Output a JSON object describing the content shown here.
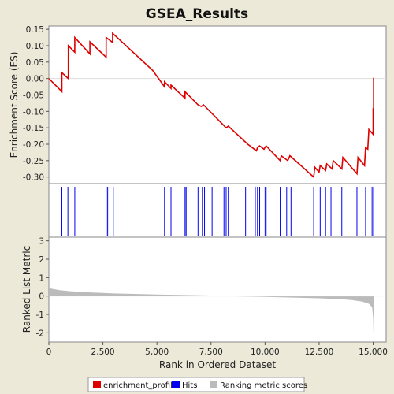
{
  "chart_data": {
    "type": "line",
    "title": "GSEA_Results",
    "xlabel": "Rank in Ordered Dataset",
    "x_ticks": [
      0,
      2500,
      5000,
      7500,
      10000,
      12500,
      15000
    ],
    "x_tick_labels": [
      "0",
      "2,500",
      "5,000",
      "7,500",
      "10,000",
      "12,500",
      "15,000"
    ],
    "xlim": [
      0,
      15600
    ],
    "enrichment_panel": {
      "ylabel": "Enrichment Score (ES)",
      "ylim": [
        -0.32,
        0.16
      ],
      "y_ticks": [
        0.15,
        0.1,
        0.05,
        0.0,
        -0.05,
        -0.1,
        -0.15,
        -0.2,
        -0.25,
        -0.3
      ],
      "y_tick_labels": [
        "0.15",
        "0.10",
        "0.05",
        "0.00",
        "-0.05",
        "-0.10",
        "-0.15",
        "-0.20",
        "-0.25",
        "-0.30"
      ],
      "series_name": "enrichment_profile",
      "color": "#DD0000",
      "x": [
        0,
        600,
        600,
        900,
        900,
        1200,
        1200,
        1900,
        1900,
        2650,
        2650,
        2950,
        2950,
        4800,
        5350,
        5350,
        5650,
        5650,
        6300,
        6300,
        6900,
        7050,
        7150,
        8200,
        8300,
        9200,
        9600,
        9650,
        9750,
        9950,
        10050,
        10700,
        10750,
        11050,
        11150,
        12250,
        12300,
        12500,
        12550,
        12800,
        12850,
        13100,
        13150,
        13550,
        13600,
        14250,
        14300,
        14600,
        14650,
        14750,
        14800,
        15000,
        15000,
        15020,
        15020
      ],
      "y": [
        0.0,
        -0.04,
        0.018,
        0.0,
        0.1,
        0.08,
        0.125,
        0.075,
        0.112,
        0.065,
        0.125,
        0.11,
        0.138,
        0.025,
        -0.025,
        -0.01,
        -0.03,
        -0.02,
        -0.06,
        -0.04,
        -0.08,
        -0.085,
        -0.08,
        -0.15,
        -0.145,
        -0.2,
        -0.22,
        -0.21,
        -0.205,
        -0.215,
        -0.205,
        -0.25,
        -0.235,
        -0.25,
        -0.235,
        -0.3,
        -0.27,
        -0.285,
        -0.265,
        -0.28,
        -0.26,
        -0.275,
        -0.25,
        -0.275,
        -0.24,
        -0.29,
        -0.24,
        -0.265,
        -0.21,
        -0.215,
        -0.155,
        -0.17,
        -0.09,
        -0.1,
        0.002
      ]
    },
    "hits_panel": {
      "series_name": "Hits",
      "color": "#0000EE",
      "positions": [
        600,
        880,
        1200,
        1950,
        2650,
        2720,
        2980,
        5350,
        5650,
        6300,
        6350,
        6900,
        7100,
        7200,
        7550,
        8100,
        8200,
        8300,
        9100,
        9550,
        9650,
        9750,
        10000,
        10050,
        10700,
        11000,
        11200,
        12250,
        12550,
        12800,
        13050,
        13550,
        14250,
        14650,
        14950,
        15020
      ]
    },
    "ranking_panel": {
      "ylabel": "Ranked List Metric",
      "ylim": [
        -2.5,
        3.2
      ],
      "y_ticks": [
        3,
        2,
        1,
        0,
        -1,
        -2
      ],
      "y_tick_labels": [
        "3",
        "2",
        "1",
        "0",
        "-1",
        "-2"
      ],
      "series_name": "Ranking metric scores",
      "color": "#BBBBBB",
      "x": [
        0,
        100,
        500,
        1000,
        2000,
        3000,
        5000,
        7500,
        8100,
        10000,
        12500,
        13500,
        14000,
        14500,
        14800,
        14950,
        15000,
        15020
      ],
      "y": [
        0.55,
        0.4,
        0.32,
        0.26,
        0.19,
        0.14,
        0.08,
        0.03,
        0.0,
        -0.05,
        -0.12,
        -0.17,
        -0.22,
        -0.3,
        -0.42,
        -0.6,
        -1.2,
        -2.3
      ]
    },
    "legend": {
      "placement": "bottom",
      "entries": [
        {
          "label": "enrichment_profile",
          "color": "#DD0000"
        },
        {
          "label": "Hits",
          "color": "#0000EE"
        },
        {
          "label": "Ranking metric scores",
          "color": "#BBBBBB"
        }
      ]
    }
  }
}
